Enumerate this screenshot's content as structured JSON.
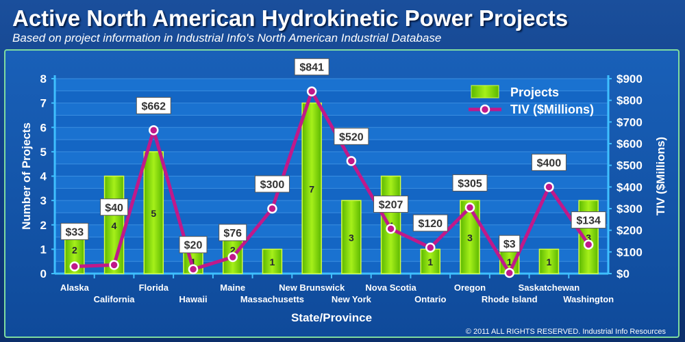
{
  "header": {
    "title": "Active North American Hydrokinetic Power Projects",
    "subtitle": "Based on project information in Industrial Info's North American Industrial Database"
  },
  "footer": {
    "copyright": "© 2011 ALL RIGHTS RESERVED. Industrial Info Resources"
  },
  "colors": {
    "bar": "#8be000",
    "line": "#c0198a",
    "axis": "#3fc0ff",
    "text": "#ffffff"
  },
  "chart_data": {
    "type": "bar+line",
    "title": "Active North American Hydrokinetic Power Projects",
    "xlabel": "State/Province",
    "ylabel": "Number of Projects",
    "y2label": "TIV ($Millions)",
    "ylim": [
      0,
      8
    ],
    "y2lim": [
      0,
      900
    ],
    "yticks": [
      "0",
      "1",
      "2",
      "3",
      "4",
      "5",
      "6",
      "7",
      "8"
    ],
    "y2ticks": [
      "$0",
      "$100",
      "$200",
      "$300",
      "$400",
      "$500",
      "$600",
      "$700",
      "$800",
      "$900"
    ],
    "legend": {
      "position": "top-right",
      "entries": [
        "Projects",
        "TIV ($Millions)"
      ]
    },
    "categories": [
      "Alaska",
      "California",
      "Florida",
      "Hawaii",
      "Maine",
      "Massachusetts",
      "New Brunswick",
      "New York",
      "Nova Scotia",
      "Ontario",
      "Oregon",
      "Rhode Island",
      "Saskatchewan",
      "Washington"
    ],
    "series": [
      {
        "name": "Projects",
        "type": "bar",
        "values": [
          2,
          4,
          5,
          1,
          2,
          1,
          7,
          3,
          4,
          1,
          3,
          1,
          1,
          3
        ]
      },
      {
        "name": "TIV ($Millions)",
        "type": "line",
        "values": [
          33,
          40,
          662,
          20,
          76,
          300,
          841,
          520,
          207,
          120,
          305,
          3,
          400,
          134
        ],
        "labels": [
          "$33",
          "$40",
          "$662",
          "$20",
          "$76",
          "$300",
          "$841",
          "$520",
          "$207",
          "$120",
          "$305",
          "$3",
          "$400",
          "$134"
        ]
      }
    ]
  }
}
